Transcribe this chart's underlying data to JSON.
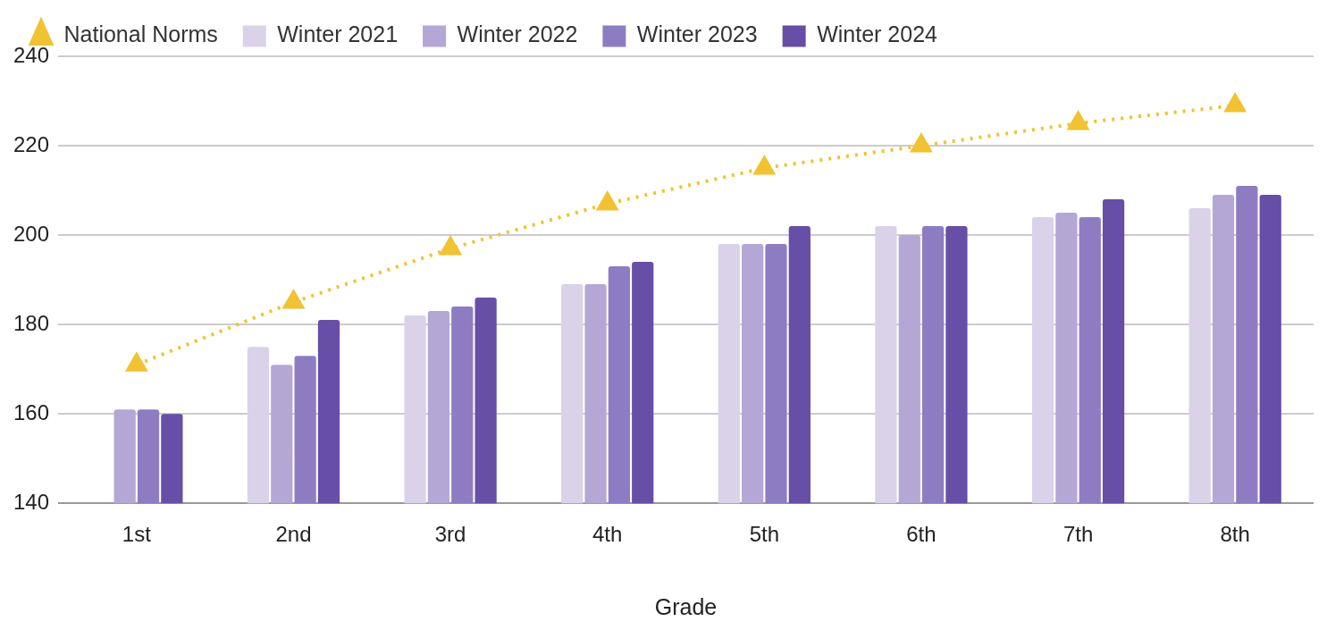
{
  "chart_data": {
    "type": "bar",
    "xlabel": "Grade",
    "categories": [
      "1st",
      "2nd",
      "3rd",
      "4th",
      "5th",
      "6th",
      "7th",
      "8th"
    ],
    "series": [
      {
        "name": "Winter 2021",
        "color": "#d9d2e9",
        "values": [
          null,
          175,
          182,
          189,
          198,
          202,
          204,
          206
        ]
      },
      {
        "name": "Winter 2022",
        "color": "#b4a7d6",
        "values": [
          161,
          171,
          183,
          189,
          198,
          200,
          205,
          209
        ]
      },
      {
        "name": "Winter 2023",
        "color": "#8e7cc3",
        "values": [
          161,
          173,
          184,
          193,
          198,
          202,
          204,
          211
        ]
      },
      {
        "name": "Winter 2024",
        "color": "#674ea7",
        "values": [
          160,
          181,
          186,
          194,
          202,
          202,
          208,
          209
        ]
      },
      {
        "name": "National Norms",
        "type": "line",
        "color": "#f1c232",
        "values": [
          171,
          185,
          197,
          207,
          215,
          220,
          225,
          229
        ]
      }
    ],
    "ylim": [
      140,
      240
    ],
    "yticks": [
      140,
      160,
      180,
      200,
      220,
      240
    ],
    "grid": "y",
    "legend": "top left",
    "marker": "triangle",
    "line_style": "dotted"
  }
}
